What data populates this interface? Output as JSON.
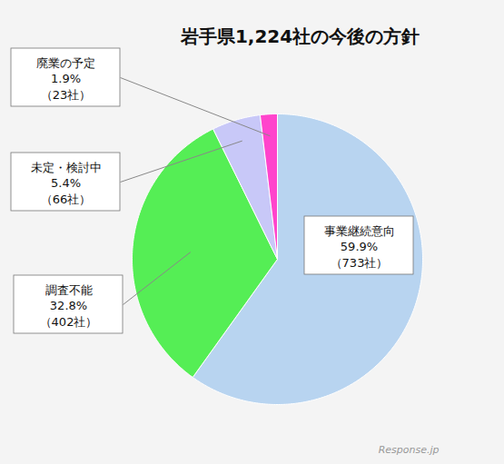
{
  "chart_data": {
    "type": "pie",
    "title": "岩手県1,224社の今後の方針",
    "categories": [
      "事業継続意向",
      "調査不能",
      "未定・検討中",
      "廃業の予定"
    ],
    "values": [
      59.9,
      32.8,
      5.4,
      1.9
    ],
    "value_labels": [
      "59.9%",
      "32.8%",
      "5.4%",
      "1.9%"
    ],
    "count_labels": [
      "（733社）",
      "（402社）",
      "（66社）",
      "（23社）"
    ],
    "colors": [
      "#b8d4f0",
      "#55ee55",
      "#c8c8f8",
      "#ff44cc"
    ],
    "annotations": [
      "Response.jp"
    ]
  }
}
